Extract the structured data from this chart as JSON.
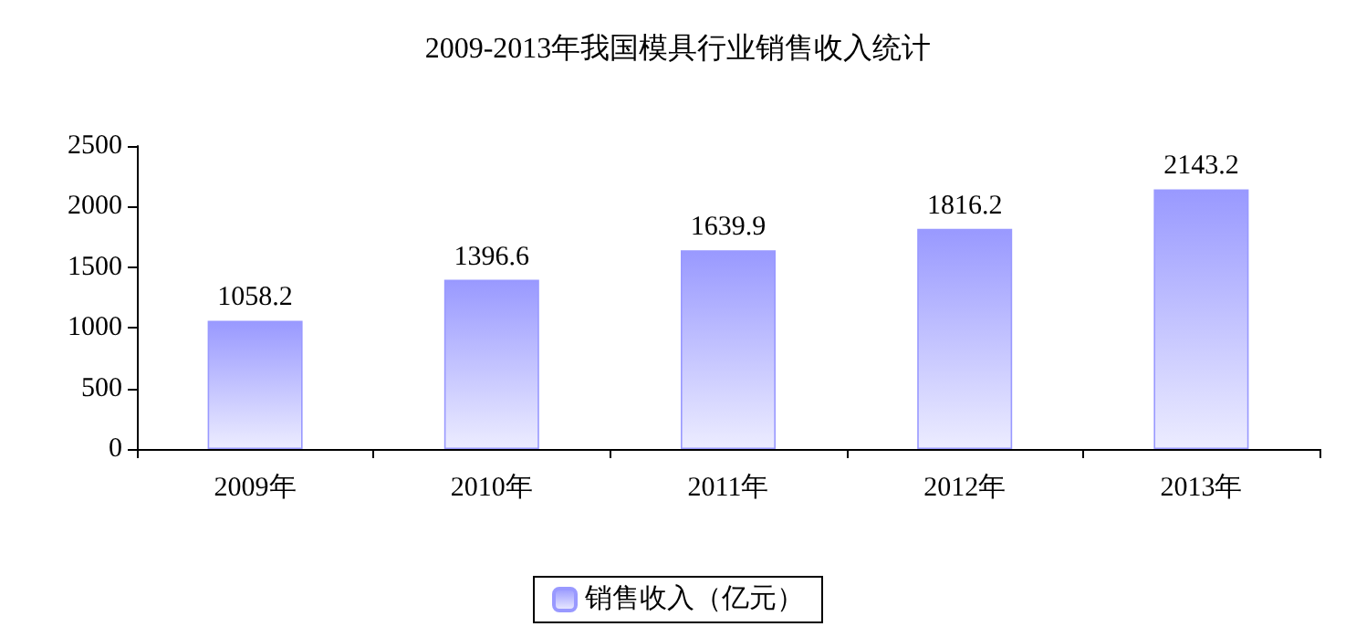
{
  "chart_data": {
    "type": "bar",
    "title": "2009-2013年我国模具行业销售收入统计",
    "categories": [
      "2009年",
      "2010年",
      "2011年",
      "2012年",
      "2013年"
    ],
    "series": [
      {
        "name": "销售收入（亿元）",
        "color": "#9999ff",
        "values": [
          1058.2,
          1396.6,
          1639.9,
          1816.2,
          2143.2
        ]
      }
    ],
    "ylim": [
      0,
      2500
    ],
    "yticks": [
      0,
      500,
      1000,
      1500,
      2000,
      2500
    ],
    "grid": false,
    "data_labels": true,
    "legend": "bottom"
  }
}
